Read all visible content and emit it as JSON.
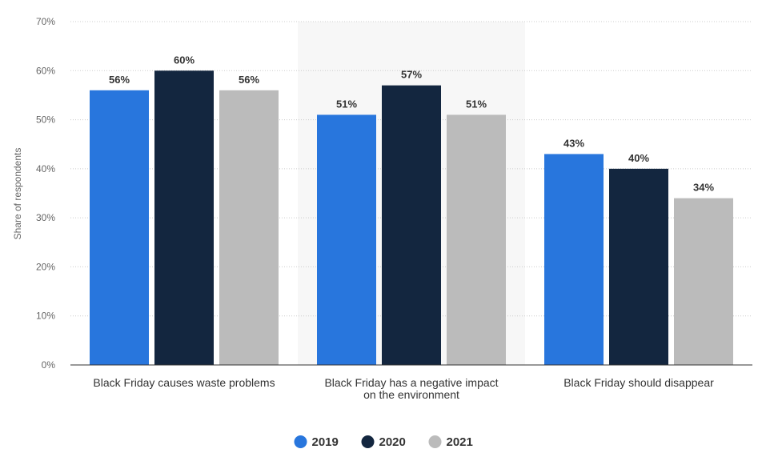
{
  "chart_data": {
    "type": "bar",
    "ylabel": "Share of respondents",
    "ylim": [
      0,
      70
    ],
    "y_ticks": [
      0,
      10,
      20,
      30,
      40,
      50,
      60,
      70
    ],
    "y_tick_labels": [
      "0%",
      "10%",
      "20%",
      "30%",
      "40%",
      "50%",
      "60%",
      "70%"
    ],
    "grid": true,
    "legend_position": "bottom-center",
    "value_suffix": "%",
    "categories": [
      [
        "Black Friday causes waste problems"
      ],
      [
        "Black Friday has a negative impact",
        "on the environment"
      ],
      [
        "Black Friday should disappear"
      ]
    ],
    "highlighted_category_index": 1,
    "series": [
      {
        "name": "2019",
        "color": "#2876dd",
        "values": [
          56,
          51,
          43
        ]
      },
      {
        "name": "2020",
        "color": "#13263f",
        "values": [
          60,
          57,
          40
        ]
      },
      {
        "name": "2021",
        "color": "#bbbbbb",
        "values": [
          56,
          51,
          34
        ]
      }
    ]
  }
}
